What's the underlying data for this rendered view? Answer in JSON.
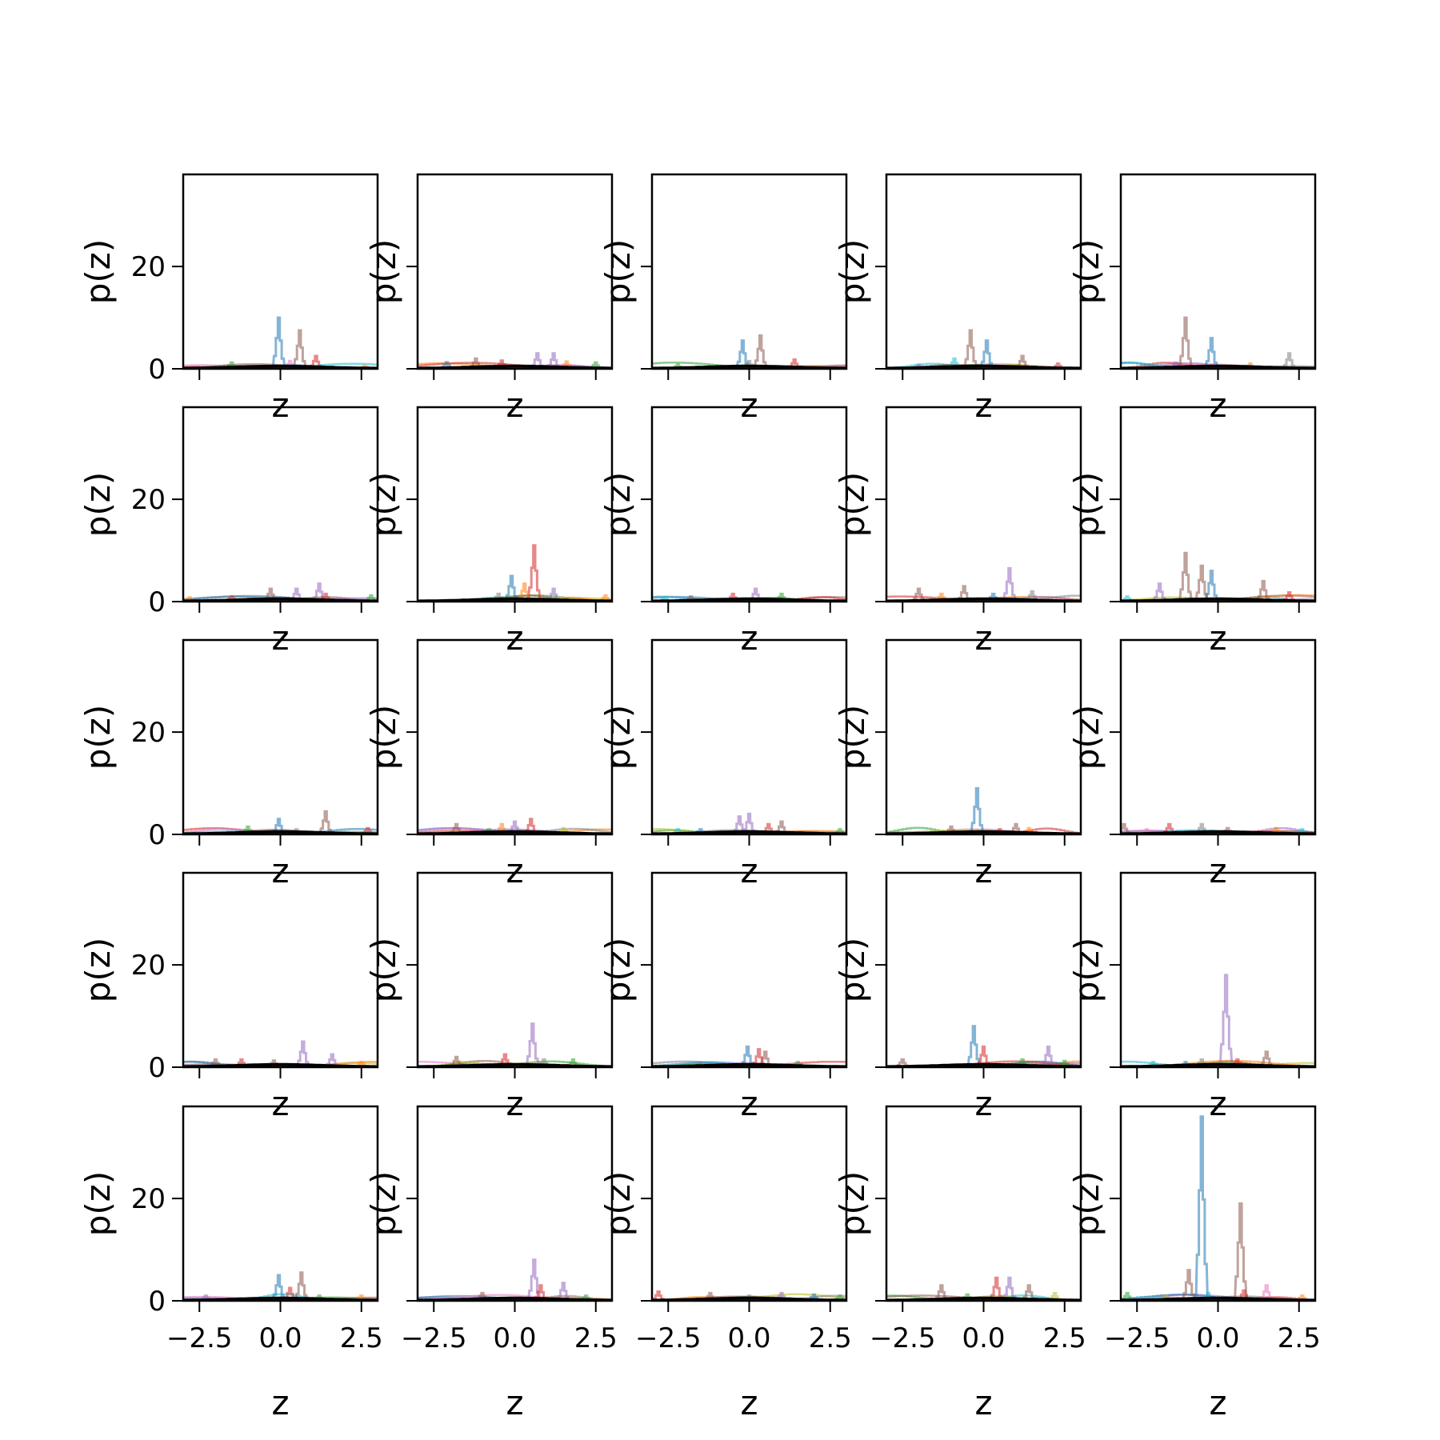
{
  "chart_data": {
    "type": "histogram-grid",
    "rows": 5,
    "cols": 5,
    "xlabel": "z",
    "ylabel": "p(z)",
    "xlim": [
      -3,
      3
    ],
    "ylim": [
      0,
      38
    ],
    "x_ticks": [
      -2.5,
      0.0,
      2.5
    ],
    "x_tick_labels": [
      "−2.5",
      "0.0",
      "2.5"
    ],
    "y_ticks": [
      0,
      20
    ],
    "y_tick_labels": [
      "0",
      "20"
    ],
    "palette": [
      "#1f77b4",
      "#ff7f0e",
      "#2ca02c",
      "#d62728",
      "#9467bd",
      "#8c564b",
      "#e377c2",
      "#7f7f7f",
      "#bcbd22",
      "#17becf"
    ],
    "baseline_color": "#000000",
    "panels": [
      {
        "peaks": [
          {
            "x": -0.05,
            "h": 10,
            "c": 0
          },
          {
            "x": 0.6,
            "h": 7.5,
            "c": 5
          },
          {
            "x": 1.1,
            "h": 2.5,
            "c": 3
          },
          {
            "x": -1.5,
            "h": 1.2,
            "c": 2
          },
          {
            "x": 2.6,
            "h": 0.6,
            "c": 1
          },
          {
            "x": 0.3,
            "h": 1.5,
            "c": 6
          }
        ]
      },
      {
        "peaks": [
          {
            "x": -2.1,
            "h": 1.3,
            "c": 0
          },
          {
            "x": -1.2,
            "h": 2.0,
            "c": 5
          },
          {
            "x": 0.7,
            "h": 3.0,
            "c": 4
          },
          {
            "x": 1.2,
            "h": 3.0,
            "c": 4
          },
          {
            "x": -0.4,
            "h": 1.6,
            "c": 3
          },
          {
            "x": 1.6,
            "h": 1.4,
            "c": 1
          },
          {
            "x": 2.5,
            "h": 1.2,
            "c": 2
          }
        ]
      },
      {
        "peaks": [
          {
            "x": -0.2,
            "h": 5.5,
            "c": 0
          },
          {
            "x": 0.35,
            "h": 6.5,
            "c": 5
          },
          {
            "x": 1.4,
            "h": 1.8,
            "c": 3
          },
          {
            "x": -2.2,
            "h": 0.8,
            "c": 2
          },
          {
            "x": 0.0,
            "h": 1.5,
            "c": 7
          }
        ]
      },
      {
        "peaks": [
          {
            "x": -0.4,
            "h": 7.5,
            "c": 5
          },
          {
            "x": 0.1,
            "h": 5.5,
            "c": 0
          },
          {
            "x": 1.2,
            "h": 2.5,
            "c": 5
          },
          {
            "x": -0.9,
            "h": 2.0,
            "c": 9
          },
          {
            "x": 2.3,
            "h": 1.0,
            "c": 3
          },
          {
            "x": -2.0,
            "h": 0.8,
            "c": 4
          }
        ]
      },
      {
        "peaks": [
          {
            "x": -1.0,
            "h": 10,
            "c": 5
          },
          {
            "x": -0.2,
            "h": 6,
            "c": 0
          },
          {
            "x": 2.2,
            "h": 3.0,
            "c": 7
          },
          {
            "x": 1.0,
            "h": 1.0,
            "c": 1
          },
          {
            "x": -1.3,
            "h": 1.2,
            "c": 4
          }
        ]
      },
      {
        "peaks": [
          {
            "x": -0.3,
            "h": 2.5,
            "c": 5
          },
          {
            "x": 0.5,
            "h": 2.5,
            "c": 4
          },
          {
            "x": 1.2,
            "h": 3.5,
            "c": 4
          },
          {
            "x": 1.4,
            "h": 1.5,
            "c": 3
          },
          {
            "x": -1.5,
            "h": 1.0,
            "c": 3
          },
          {
            "x": 2.8,
            "h": 1.2,
            "c": 2
          },
          {
            "x": -2.8,
            "h": 0.8,
            "c": 1
          }
        ]
      },
      {
        "peaks": [
          {
            "x": 0.6,
            "h": 11,
            "c": 3
          },
          {
            "x": -0.1,
            "h": 5,
            "c": 0
          },
          {
            "x": 0.3,
            "h": 3.5,
            "c": 1
          },
          {
            "x": 1.2,
            "h": 2.5,
            "c": 4
          },
          {
            "x": -0.5,
            "h": 1.5,
            "c": 7
          },
          {
            "x": 2.8,
            "h": 1.2,
            "c": 1
          }
        ]
      },
      {
        "peaks": [
          {
            "x": 0.2,
            "h": 2.5,
            "c": 4
          },
          {
            "x": -0.5,
            "h": 1.5,
            "c": 3
          },
          {
            "x": 1.0,
            "h": 1.5,
            "c": 2
          },
          {
            "x": -1.8,
            "h": 1.0,
            "c": 5
          },
          {
            "x": -2.6,
            "h": 0.8,
            "c": 9
          }
        ]
      },
      {
        "peaks": [
          {
            "x": 0.8,
            "h": 6.5,
            "c": 4
          },
          {
            "x": -2.0,
            "h": 2.5,
            "c": 5
          },
          {
            "x": -0.6,
            "h": 3.0,
            "c": 5
          },
          {
            "x": 1.5,
            "h": 2.0,
            "c": 7
          },
          {
            "x": -1.3,
            "h": 1.5,
            "c": 1
          },
          {
            "x": 0.3,
            "h": 1.5,
            "c": 0
          }
        ]
      },
      {
        "peaks": [
          {
            "x": -1.0,
            "h": 9.5,
            "c": 5
          },
          {
            "x": -0.2,
            "h": 6,
            "c": 0
          },
          {
            "x": -0.5,
            "h": 7,
            "c": 5
          },
          {
            "x": 1.4,
            "h": 4,
            "c": 5
          },
          {
            "x": -1.8,
            "h": 3.5,
            "c": 4
          },
          {
            "x": 2.2,
            "h": 1.8,
            "c": 3
          },
          {
            "x": -2.8,
            "h": 1.0,
            "c": 9
          }
        ]
      },
      {
        "peaks": [
          {
            "x": 1.4,
            "h": 4.5,
            "c": 5
          },
          {
            "x": -0.05,
            "h": 3,
            "c": 0
          },
          {
            "x": -1.0,
            "h": 1.5,
            "c": 2
          },
          {
            "x": 2.7,
            "h": 1.2,
            "c": 3
          },
          {
            "x": 0.5,
            "h": 1.0,
            "c": 7
          }
        ]
      },
      {
        "peaks": [
          {
            "x": 0.5,
            "h": 3,
            "c": 3
          },
          {
            "x": -1.8,
            "h": 2.0,
            "c": 5
          },
          {
            "x": 0.0,
            "h": 2.5,
            "c": 4
          },
          {
            "x": -0.4,
            "h": 2.0,
            "c": 1
          },
          {
            "x": 1.5,
            "h": 1.2,
            "c": 8
          },
          {
            "x": -0.8,
            "h": 1.0,
            "c": 2
          }
        ]
      },
      {
        "peaks": [
          {
            "x": -0.3,
            "h": 3.5,
            "c": 4
          },
          {
            "x": 0.0,
            "h": 4,
            "c": 4
          },
          {
            "x": 1.0,
            "h": 2.5,
            "c": 5
          },
          {
            "x": 0.6,
            "h": 2.0,
            "c": 3
          },
          {
            "x": -2.2,
            "h": 1.0,
            "c": 9
          },
          {
            "x": 2.8,
            "h": 1.0,
            "c": 2
          },
          {
            "x": -1.5,
            "h": 1.0,
            "c": 0
          }
        ]
      },
      {
        "peaks": [
          {
            "x": -0.2,
            "h": 9,
            "c": 0
          },
          {
            "x": 1.0,
            "h": 2,
            "c": 5
          },
          {
            "x": -1.0,
            "h": 1.5,
            "c": 5
          },
          {
            "x": 1.4,
            "h": 1.2,
            "c": 1
          },
          {
            "x": 0.5,
            "h": 1.0,
            "c": 3
          }
        ]
      },
      {
        "peaks": [
          {
            "x": -2.9,
            "h": 2.0,
            "c": 5
          },
          {
            "x": -1.5,
            "h": 2.0,
            "c": 3
          },
          {
            "x": -0.5,
            "h": 2.0,
            "c": 7
          },
          {
            "x": -2.2,
            "h": 1.0,
            "c": 6
          },
          {
            "x": 1.8,
            "h": 1.2,
            "c": 1
          },
          {
            "x": 2.6,
            "h": 1.0,
            "c": 9
          },
          {
            "x": 0.3,
            "h": 1.2,
            "c": 5
          }
        ]
      },
      {
        "peaks": [
          {
            "x": 0.7,
            "h": 5,
            "c": 4
          },
          {
            "x": 1.6,
            "h": 2.5,
            "c": 4
          },
          {
            "x": -1.2,
            "h": 1.5,
            "c": 3
          },
          {
            "x": -2.0,
            "h": 1.5,
            "c": 5
          },
          {
            "x": -0.2,
            "h": 1.3,
            "c": 5
          },
          {
            "x": 2.5,
            "h": 1.0,
            "c": 1
          }
        ]
      },
      {
        "peaks": [
          {
            "x": 0.55,
            "h": 8.5,
            "c": 4
          },
          {
            "x": -1.8,
            "h": 2.0,
            "c": 5
          },
          {
            "x": -0.3,
            "h": 2.5,
            "c": 3
          },
          {
            "x": 0.9,
            "h": 1.5,
            "c": 7
          },
          {
            "x": 1.8,
            "h": 1.5,
            "c": 2
          }
        ]
      },
      {
        "peaks": [
          {
            "x": -0.05,
            "h": 4,
            "c": 0
          },
          {
            "x": 0.3,
            "h": 3.5,
            "c": 3
          },
          {
            "x": 0.5,
            "h": 3,
            "c": 5
          },
          {
            "x": -1.5,
            "h": 0.8,
            "c": 7
          },
          {
            "x": 1.5,
            "h": 1.0,
            "c": 2
          }
        ]
      },
      {
        "peaks": [
          {
            "x": -0.3,
            "h": 8,
            "c": 0
          },
          {
            "x": 0.0,
            "h": 4,
            "c": 3
          },
          {
            "x": 2.0,
            "h": 4,
            "c": 4
          },
          {
            "x": -2.5,
            "h": 1.5,
            "c": 5
          },
          {
            "x": 1.2,
            "h": 1.5,
            "c": 2
          },
          {
            "x": 2.5,
            "h": 1.2,
            "c": 2
          }
        ]
      },
      {
        "peaks": [
          {
            "x": 0.25,
            "h": 18,
            "c": 4
          },
          {
            "x": 1.5,
            "h": 3.0,
            "c": 5
          },
          {
            "x": -0.5,
            "h": 1.5,
            "c": 7
          },
          {
            "x": 0.6,
            "h": 1.5,
            "c": 3
          },
          {
            "x": -2.0,
            "h": 1.0,
            "c": 9
          },
          {
            "x": -1.0,
            "h": 1.0,
            "c": 0
          }
        ]
      },
      {
        "peaks": [
          {
            "x": -0.05,
            "h": 5,
            "c": 0
          },
          {
            "x": 0.65,
            "h": 5.5,
            "c": 5
          },
          {
            "x": -2.3,
            "h": 1.0,
            "c": 4
          },
          {
            "x": 0.3,
            "h": 2.5,
            "c": 3
          },
          {
            "x": 2.5,
            "h": 1.0,
            "c": 1
          },
          {
            "x": 1.2,
            "h": 1.0,
            "c": 2
          }
        ]
      },
      {
        "peaks": [
          {
            "x": 0.6,
            "h": 8,
            "c": 4
          },
          {
            "x": 1.5,
            "h": 3.5,
            "c": 4
          },
          {
            "x": 0.8,
            "h": 3,
            "c": 3
          },
          {
            "x": -1.0,
            "h": 1.5,
            "c": 5
          },
          {
            "x": 2.2,
            "h": 1.0,
            "c": 2
          }
        ]
      },
      {
        "peaks": [
          {
            "x": -2.8,
            "h": 1.8,
            "c": 3
          },
          {
            "x": -1.2,
            "h": 1.5,
            "c": 5
          },
          {
            "x": 1.0,
            "h": 1.5,
            "c": 4
          },
          {
            "x": 2.0,
            "h": 1.2,
            "c": 0
          },
          {
            "x": 0.0,
            "h": 1.0,
            "c": 7
          },
          {
            "x": 2.8,
            "h": 1.0,
            "c": 2
          }
        ]
      },
      {
        "peaks": [
          {
            "x": 0.4,
            "h": 4.5,
            "c": 3
          },
          {
            "x": 0.8,
            "h": 4.5,
            "c": 4
          },
          {
            "x": -1.3,
            "h": 3,
            "c": 5
          },
          {
            "x": 1.4,
            "h": 3,
            "c": 5
          },
          {
            "x": 2.2,
            "h": 1.5,
            "c": 8
          },
          {
            "x": -0.5,
            "h": 1.2,
            "c": 2
          }
        ]
      },
      {
        "peaks": [
          {
            "x": -0.5,
            "h": 36,
            "c": 0
          },
          {
            "x": 0.7,
            "h": 19,
            "c": 5
          },
          {
            "x": -0.9,
            "h": 6,
            "c": 5
          },
          {
            "x": 1.5,
            "h": 3,
            "c": 6
          },
          {
            "x": 0.8,
            "h": 2,
            "c": 3
          },
          {
            "x": -2.8,
            "h": 1.5,
            "c": 2
          },
          {
            "x": 2.6,
            "h": 1.0,
            "c": 1
          },
          {
            "x": -1.6,
            "h": 1.0,
            "c": 8
          },
          {
            "x": -0.3,
            "h": 1.5,
            "c": 9
          }
        ]
      }
    ]
  }
}
